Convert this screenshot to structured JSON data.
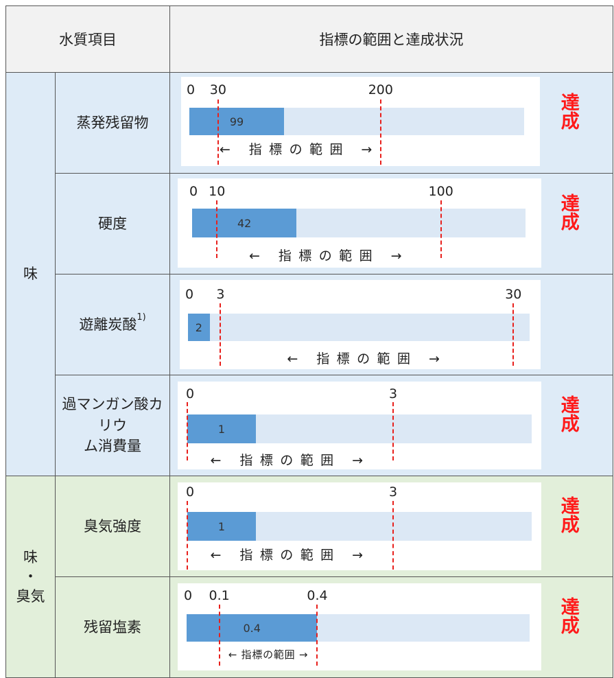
{
  "header": {
    "item_label": "水質項目",
    "status_label": "指標の範囲と達成状況"
  },
  "groups": [
    {
      "label": "味"
    },
    {
      "label": "味・臭気"
    }
  ],
  "colors": {
    "taste_group_bg": "#deebf7",
    "taste_odor_group_bg": "#e2efda",
    "bar_fill": "#5b9bd5",
    "bar_background": "#dce8f5",
    "range_line": "#e8201c",
    "achieved_text": "#ff1a1a"
  },
  "rows": [
    {
      "name": "蒸発残留物",
      "note": "",
      "value": 99,
      "value_label": "99",
      "range_min": 30,
      "range_max": 200,
      "range_min_label": "30",
      "range_max_label": "200",
      "zero_label": "0",
      "range_text": "← 指標の範囲 →",
      "status": "達成"
    },
    {
      "name": "硬度",
      "note": "",
      "value": 42,
      "value_label": "42",
      "range_min": 10,
      "range_max": 100,
      "range_min_label": "10",
      "range_max_label": "100",
      "zero_label": "0",
      "range_text": "← 指標の範囲 →",
      "status": "達成"
    },
    {
      "name": "遊離炭酸",
      "note": "1)",
      "value": 2,
      "value_label": "2",
      "range_min": 3,
      "range_max": 30,
      "range_min_label": "3",
      "range_max_label": "30",
      "zero_label": "0",
      "range_text": "← 指標の範囲 →",
      "status": ""
    },
    {
      "name": "過マンガン酸カリウム消費量",
      "note": "",
      "value": 1,
      "value_label": "1",
      "range_min": 0,
      "range_max": 3,
      "range_min_label": "0",
      "range_max_label": "3",
      "zero_label": "",
      "range_text": "← 指標の範囲 →",
      "status": "達成"
    },
    {
      "name": "臭気強度",
      "note": "",
      "value": 1,
      "value_label": "1",
      "range_min": 0,
      "range_max": 3,
      "range_min_label": "0",
      "range_max_label": "3",
      "zero_label": "",
      "range_text": "← 指標の範囲 →",
      "status": "達成"
    },
    {
      "name": "残留塩素",
      "note": "",
      "value": 0.4,
      "value_label": "0.4",
      "range_min": 0.1,
      "range_max": 0.4,
      "range_min_label": "0.1",
      "range_max_label": "0.4",
      "zero_label": "0",
      "range_text": "← 指標の範囲 →",
      "status": "達成"
    }
  ]
}
